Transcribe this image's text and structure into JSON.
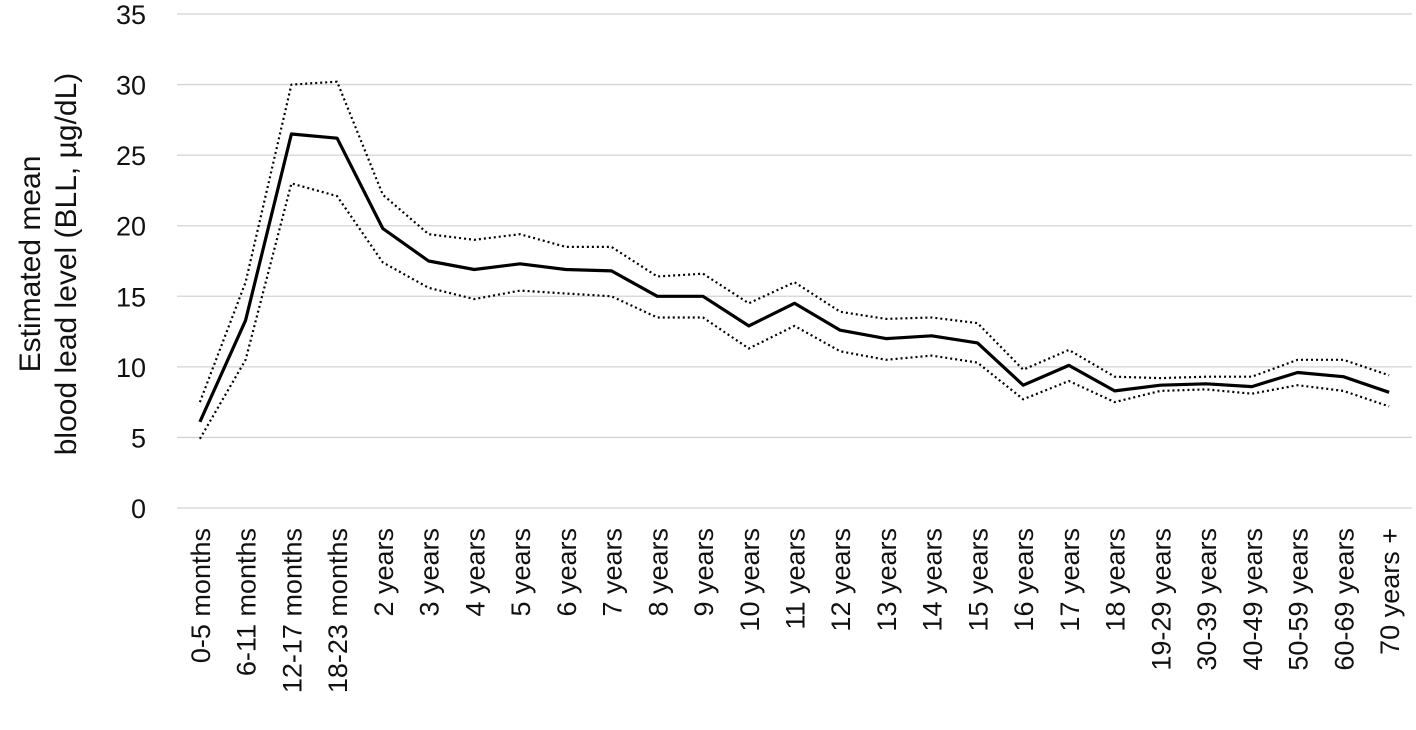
{
  "chart_data": {
    "type": "line",
    "title": "",
    "xlabel": "",
    "ylabel_lines": [
      "Estimated mean",
      "blood lead level (BLL, µg/dL)"
    ],
    "ylim": [
      0,
      35
    ],
    "yticks": [
      0,
      5,
      10,
      15,
      20,
      25,
      30,
      35
    ],
    "grid": true,
    "legend": "none",
    "categories": [
      "0-5 months",
      "6-11 months",
      "12-17 months",
      "18-23 months",
      "2 years",
      "3 years",
      "4 years",
      "5 years",
      "6 years",
      "7 years",
      "8 years",
      "9 years",
      "10 years",
      "11 years",
      "12 years",
      "13 years",
      "14 years",
      "15 years",
      "16 years",
      "17 years",
      "18 years",
      "19-29 years",
      "30-39 years",
      "40-49 years",
      "50-59 years",
      "60-69 years",
      "70 years +"
    ],
    "series": [
      {
        "style": "dotted",
        "values": [
          7.5,
          16.0,
          30.0,
          30.2,
          22.2,
          19.4,
          19.0,
          19.4,
          18.5,
          18.5,
          16.4,
          16.6,
          14.5,
          16.0,
          13.9,
          13.4,
          13.5,
          13.1,
          9.8,
          11.2,
          9.3,
          9.2,
          9.3,
          9.3,
          10.5,
          10.5,
          9.4
        ]
      },
      {
        "style": "solid",
        "values": [
          6.1,
          13.3,
          26.5,
          26.2,
          19.8,
          17.5,
          16.9,
          17.3,
          16.9,
          16.8,
          15.0,
          15.0,
          12.9,
          14.5,
          12.6,
          12.0,
          12.2,
          11.7,
          8.7,
          10.1,
          8.3,
          8.7,
          8.8,
          8.6,
          9.6,
          9.3,
          8.2
        ]
      },
      {
        "style": "dotted",
        "values": [
          4.9,
          10.5,
          23.0,
          22.1,
          17.4,
          15.6,
          14.8,
          15.4,
          15.2,
          15.0,
          13.5,
          13.5,
          11.3,
          12.9,
          11.1,
          10.5,
          10.8,
          10.3,
          7.7,
          9.0,
          7.5,
          8.3,
          8.4,
          8.1,
          8.7,
          8.3,
          7.2
        ]
      }
    ],
    "colors": {
      "line": "#000000",
      "grid": "#d4d4d4",
      "text": "#111111"
    }
  }
}
